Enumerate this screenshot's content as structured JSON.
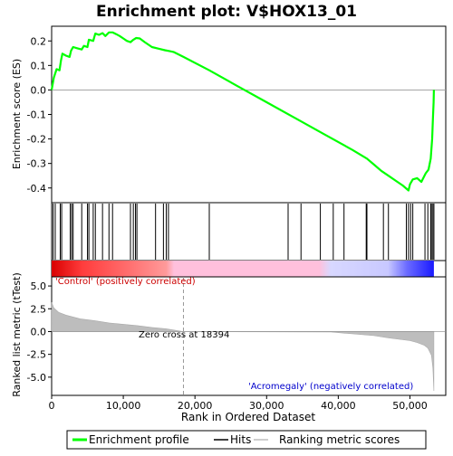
{
  "chart_data": {
    "type": "line",
    "title": "Enrichment plot: V$HOX13_01",
    "top_panel": {
      "ylabel": "Enrichment score (ES)",
      "ylim": [
        -0.46,
        0.26
      ],
      "yticks": [
        0.2,
        0.1,
        0.0,
        -0.1,
        -0.2,
        -0.3,
        -0.4
      ],
      "ytick_labels": [
        "0.2",
        "0.1",
        "0.0",
        "-0.1",
        "-0.2",
        "-0.3",
        "-0.4"
      ],
      "series_name": "Enrichment profile",
      "color": "#00ff00",
      "points": [
        [
          0,
          0.0
        ],
        [
          300,
          0.05
        ],
        [
          700,
          0.085
        ],
        [
          1100,
          0.08
        ],
        [
          1300,
          0.12
        ],
        [
          1500,
          0.148
        ],
        [
          2000,
          0.14
        ],
        [
          2500,
          0.135
        ],
        [
          2700,
          0.16
        ],
        [
          3000,
          0.175
        ],
        [
          3600,
          0.17
        ],
        [
          4200,
          0.165
        ],
        [
          4500,
          0.18
        ],
        [
          5000,
          0.175
        ],
        [
          5200,
          0.205
        ],
        [
          5800,
          0.2
        ],
        [
          6100,
          0.23
        ],
        [
          6600,
          0.225
        ],
        [
          7100,
          0.232
        ],
        [
          7500,
          0.22
        ],
        [
          8000,
          0.235
        ],
        [
          8500,
          0.235
        ],
        [
          9000,
          0.228
        ],
        [
          9500,
          0.22
        ],
        [
          10000,
          0.21
        ],
        [
          10500,
          0.2
        ],
        [
          11000,
          0.195
        ],
        [
          11400,
          0.205
        ],
        [
          11800,
          0.212
        ],
        [
          12300,
          0.21
        ],
        [
          13000,
          0.195
        ],
        [
          14000,
          0.175
        ],
        [
          15000,
          0.168
        ],
        [
          15800,
          0.162
        ],
        [
          16500,
          0.158
        ],
        [
          17000,
          0.155
        ],
        [
          18394,
          0.135
        ],
        [
          22000,
          0.08
        ],
        [
          26000,
          0.015
        ],
        [
          30000,
          -0.05
        ],
        [
          34000,
          -0.115
        ],
        [
          38000,
          -0.18
        ],
        [
          42000,
          -0.245
        ],
        [
          44000,
          -0.28
        ],
        [
          45000,
          -0.305
        ],
        [
          46000,
          -0.33
        ],
        [
          47000,
          -0.35
        ],
        [
          48000,
          -0.37
        ],
        [
          49000,
          -0.39
        ],
        [
          49800,
          -0.41
        ],
        [
          50000,
          -0.385
        ],
        [
          50400,
          -0.365
        ],
        [
          51000,
          -0.36
        ],
        [
          51600,
          -0.375
        ],
        [
          52200,
          -0.34
        ],
        [
          52600,
          -0.325
        ],
        [
          52900,
          -0.28
        ],
        [
          53100,
          -0.2
        ],
        [
          53200,
          -0.12
        ],
        [
          53300,
          -0.05
        ],
        [
          53350,
          0.0
        ]
      ]
    },
    "hits_panel": {
      "hit_positions": [
        200,
        500,
        1200,
        1400,
        2600,
        2800,
        3000,
        4200,
        5000,
        5200,
        5800,
        6100,
        7100,
        8000,
        8500,
        11000,
        11400,
        11700,
        11900,
        14500,
        15600,
        16000,
        16300,
        22000,
        33000,
        34800,
        37500,
        39300,
        40800,
        43900,
        44000,
        46300,
        47000,
        49500,
        49800,
        50100,
        50400,
        52100,
        52500,
        52900,
        53000,
        53200,
        53350
      ]
    },
    "bottom_panel": {
      "ylabel": "Ranked list metric (tTest)",
      "xlabel": "Rank in Ordered Dataset",
      "ylim": [
        -7,
        6
      ],
      "yticks": [
        5.0,
        2.5,
        0.0,
        -2.5,
        -5.0
      ],
      "ytick_labels": [
        "5.0",
        "2.5",
        "0.0",
        "-2.5",
        "-5.0"
      ],
      "xlim": [
        0,
        55000
      ],
      "xticks": [
        0,
        10000,
        20000,
        30000,
        40000,
        50000
      ],
      "xtick_labels": [
        "0",
        "10,000",
        "20,000",
        "30,000",
        "40,000",
        "50,000"
      ],
      "zero_cross": 18394,
      "zero_cross_label": "Zero cross at 18394",
      "positive_label": "'Control' (positively correlated)",
      "negative_label": "'Acromegaly' (negatively correlated)",
      "metric_points": [
        [
          0,
          3.2
        ],
        [
          300,
          2.6
        ],
        [
          1000,
          2.1
        ],
        [
          2000,
          1.8
        ],
        [
          4000,
          1.4
        ],
        [
          6000,
          1.2
        ],
        [
          8000,
          0.95
        ],
        [
          10000,
          0.8
        ],
        [
          12000,
          0.65
        ],
        [
          14000,
          0.45
        ],
        [
          16000,
          0.3
        ],
        [
          18394,
          0.0
        ],
        [
          25000,
          -0.02
        ],
        [
          39000,
          -0.05
        ],
        [
          42000,
          -0.25
        ],
        [
          45000,
          -0.45
        ],
        [
          47000,
          -0.7
        ],
        [
          49000,
          -0.9
        ],
        [
          50000,
          -1.0
        ],
        [
          51000,
          -1.2
        ],
        [
          52000,
          -1.5
        ],
        [
          52500,
          -1.8
        ],
        [
          53000,
          -2.6
        ],
        [
          53200,
          -4.0
        ],
        [
          53350,
          -6.5
        ]
      ],
      "total_rank": 53350
    },
    "legend": {
      "items": [
        {
          "label": "Enrichment profile",
          "color": "#00ff00"
        },
        {
          "label": "Hits",
          "color": "#000000"
        },
        {
          "label": "Ranking metric scores",
          "color": "#bdbdbd"
        }
      ]
    }
  }
}
